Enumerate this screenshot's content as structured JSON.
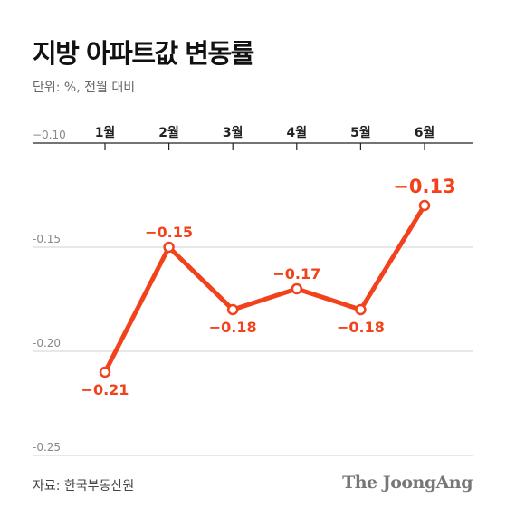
{
  "header": {
    "title": "지방 아파트값 변동률",
    "subtitle": "단위: %, 전월 대비"
  },
  "chart_data": {
    "type": "line",
    "categories": [
      "1월",
      "2월",
      "3월",
      "4월",
      "5월",
      "6월"
    ],
    "values": [
      -0.21,
      -0.15,
      -0.18,
      -0.17,
      -0.18,
      -0.13
    ],
    "value_labels": [
      "−0.21",
      "−0.15",
      "−0.18",
      "−0.17",
      "−0.18",
      "−0.13"
    ],
    "value_label_position": [
      "below",
      "above",
      "below",
      "above",
      "below",
      "above"
    ],
    "y_ticks": [
      -0.1,
      -0.15,
      -0.2,
      -0.25
    ],
    "y_tick_labels": [
      "−0.10",
      "-0.15",
      "-0.20",
      "-0.25"
    ],
    "ylim": [
      -0.25,
      -0.1
    ],
    "x_axis_position": "top",
    "grid": true,
    "series_color": "#f2421b",
    "title": "지방 아파트값 변동률",
    "subtitle": "단위: %, 전월 대비"
  },
  "footer": {
    "source": "자료: 한국부동산원",
    "brand": "The JoongAng"
  }
}
